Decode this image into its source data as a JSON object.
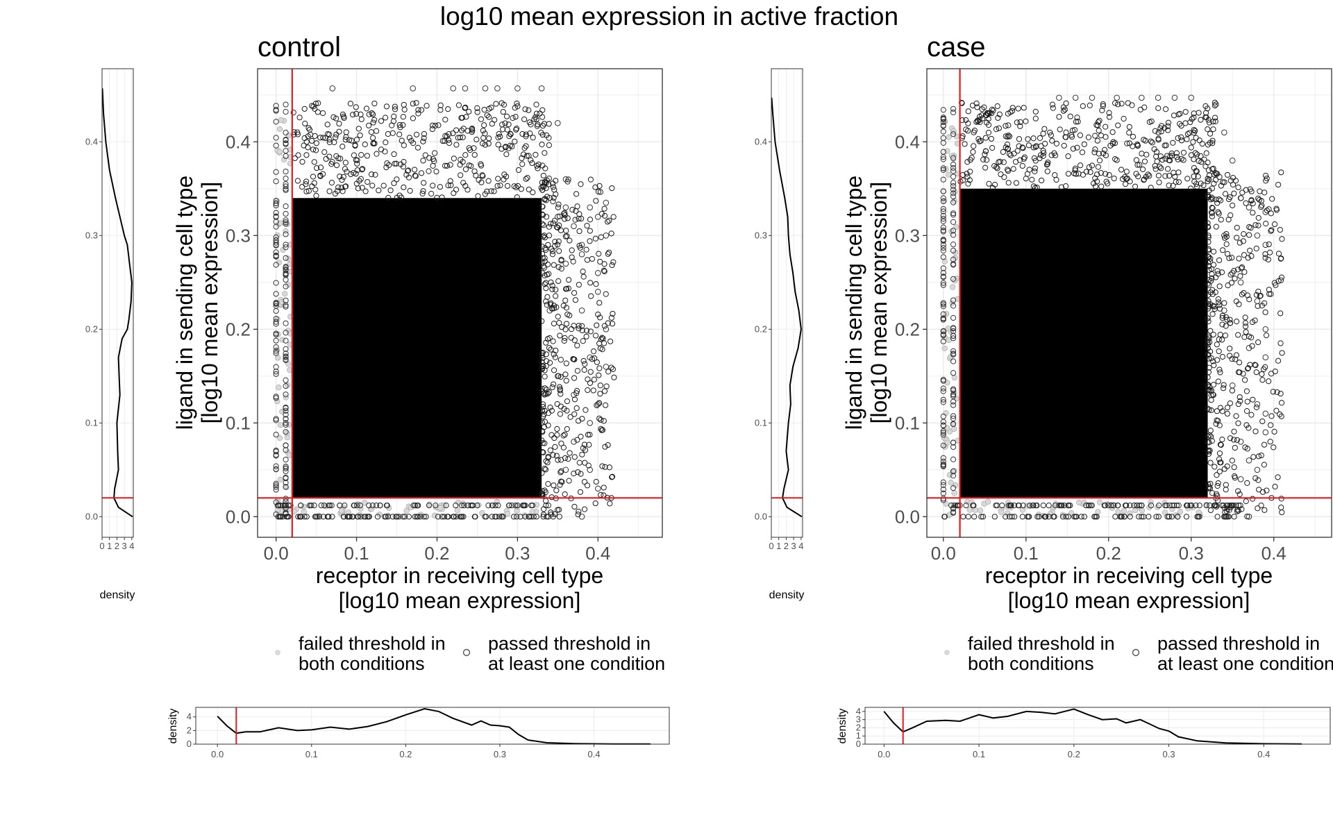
{
  "title": "log10 mean expression in active fraction",
  "colors": {
    "threshold_line": "#e41a1c",
    "point_stroke": "#000000",
    "failed_point": "#d9d9d9",
    "grid": "#ebebeb",
    "panel_border": "#333333",
    "density_line": "#000000"
  },
  "legend": {
    "failed_label_line1": "failed threshold in",
    "failed_label_line2": "both conditions",
    "passed_label_line1": "passed threshold in",
    "passed_label_line2": "at least one condition"
  },
  "chart_data": [
    {
      "type": "scatter",
      "name": "control",
      "title": "control",
      "xlabel_line1": "receptor in receiving cell type",
      "xlabel_line2": "[log10 mean expression]",
      "ylabel_line1": "ligand in sending cell type",
      "ylabel_line2": "[log10 mean expression]",
      "xlim": [
        -0.023,
        0.48
      ],
      "ylim": [
        -0.022,
        0.478
      ],
      "x_ticks": [
        0.0,
        0.1,
        0.2,
        0.3,
        0.4
      ],
      "y_ticks": [
        0.0,
        0.1,
        0.2,
        0.3,
        0.4
      ],
      "x_tick_labels": [
        "0.0",
        "0.1",
        "0.2",
        "0.3",
        "0.4"
      ],
      "y_tick_labels": [
        "0.0",
        "0.1",
        "0.2",
        "0.3",
        "0.4"
      ],
      "threshold": {
        "x": 0.02,
        "y": 0.02
      },
      "dense_region": {
        "x": [
          0.02,
          0.33
        ],
        "y": [
          0.02,
          0.34
        ]
      },
      "outlier_points": [
        [
          0.07,
          0.457
        ],
        [
          0.17,
          0.457
        ],
        [
          0.22,
          0.457
        ],
        [
          0.235,
          0.457
        ],
        [
          0.26,
          0.457
        ],
        [
          0.275,
          0.457
        ],
        [
          0.3,
          0.457
        ],
        [
          0.33,
          0.457
        ],
        [
          0.35,
          0.42
        ],
        [
          0.36,
          0.33
        ],
        [
          0.37,
          0.31
        ],
        [
          0.38,
          0.29
        ],
        [
          0.39,
          0.33
        ],
        [
          0.4,
          0.32
        ],
        [
          0.41,
          0.335
        ],
        [
          0.41,
          0.3
        ],
        [
          0.4,
          0.24
        ],
        [
          0.41,
          0.2
        ],
        [
          0.41,
          0.16
        ],
        [
          0.4,
          0.26
        ],
        [
          0.39,
          0.17
        ],
        [
          0.38,
          0.22
        ],
        [
          0.37,
          0.13
        ],
        [
          0.36,
          0.27
        ],
        [
          0.37,
          0.08
        ],
        [
          0.36,
          0.05
        ],
        [
          0.35,
          0.15
        ],
        [
          0.39,
          0.05
        ],
        [
          0.4,
          0.03
        ],
        [
          0.38,
          0.0
        ],
        [
          0.34,
          0.22
        ],
        [
          0.35,
          0.32
        ],
        [
          0.36,
          0.36
        ],
        [
          0.38,
          0.28
        ],
        [
          0.39,
          0.1
        ],
        [
          0.4,
          0.12
        ]
      ],
      "marginal_y_density": {
        "xlabel": "density",
        "x_ticks": [
          0,
          1,
          2,
          3,
          4
        ],
        "y_ticks": [
          0.0,
          0.1,
          0.2,
          0.3,
          0.4
        ],
        "xlim": [
          0,
          4.2
        ],
        "ylim": [
          -0.022,
          0.478
        ],
        "y": [
          0.0,
          0.01,
          0.02,
          0.03,
          0.05,
          0.07,
          0.1,
          0.13,
          0.15,
          0.17,
          0.19,
          0.2,
          0.21,
          0.23,
          0.25,
          0.27,
          0.29,
          0.3,
          0.32,
          0.34,
          0.37,
          0.4,
          0.43,
          0.457
        ],
        "density": [
          4.1,
          2.2,
          1.6,
          1.7,
          2.2,
          2.1,
          2.0,
          2.4,
          2.3,
          2.2,
          2.7,
          3.4,
          3.6,
          3.9,
          4.0,
          3.7,
          3.4,
          3.0,
          2.4,
          1.8,
          1.0,
          0.5,
          0.2,
          0.05
        ]
      },
      "marginal_x_density": {
        "ylabel": "density",
        "x_ticks": [
          0.0,
          0.1,
          0.2,
          0.3,
          0.4
        ],
        "y_ticks": [
          0,
          2,
          4
        ],
        "xlim": [
          -0.023,
          0.48
        ],
        "ylim": [
          0,
          5.4
        ],
        "x": [
          0.0,
          0.01,
          0.02,
          0.03,
          0.045,
          0.065,
          0.085,
          0.1,
          0.12,
          0.14,
          0.16,
          0.18,
          0.2,
          0.22,
          0.235,
          0.25,
          0.27,
          0.28,
          0.29,
          0.3,
          0.31,
          0.32,
          0.33,
          0.35,
          0.38,
          0.42,
          0.46
        ],
        "density": [
          4.1,
          2.7,
          1.6,
          1.8,
          1.8,
          2.4,
          2.0,
          2.1,
          2.5,
          2.2,
          2.6,
          3.3,
          4.3,
          5.2,
          4.8,
          3.8,
          2.8,
          3.4,
          2.8,
          2.7,
          2.5,
          1.4,
          0.6,
          0.2,
          0.08,
          0.03,
          0.02
        ]
      }
    },
    {
      "type": "scatter",
      "name": "case",
      "title": "case",
      "xlabel_line1": "receptor in receiving cell type",
      "xlabel_line2": "[log10 mean expression]",
      "ylabel_line1": "ligand in sending cell type",
      "ylabel_line2": "[log10 mean expression]",
      "xlim": [
        -0.02,
        0.47
      ],
      "ylim": [
        -0.022,
        0.478
      ],
      "x_ticks": [
        0.0,
        0.1,
        0.2,
        0.3,
        0.4
      ],
      "y_ticks": [
        0.0,
        0.1,
        0.2,
        0.3,
        0.4
      ],
      "x_tick_labels": [
        "0.0",
        "0.1",
        "0.2",
        "0.3",
        "0.4"
      ],
      "y_tick_labels": [
        "0.0",
        "0.1",
        "0.2",
        "0.3",
        "0.4"
      ],
      "threshold": {
        "x": 0.02,
        "y": 0.02
      },
      "dense_region": {
        "x": [
          0.02,
          0.32
        ],
        "y": [
          0.02,
          0.35
        ]
      },
      "outlier_points": [
        [
          0.14,
          0.447
        ],
        [
          0.16,
          0.447
        ],
        [
          0.18,
          0.447
        ],
        [
          0.21,
          0.447
        ],
        [
          0.24,
          0.447
        ],
        [
          0.26,
          0.447
        ],
        [
          0.28,
          0.447
        ],
        [
          0.3,
          0.447
        ],
        [
          0.33,
          0.44
        ],
        [
          0.34,
          0.41
        ],
        [
          0.35,
          0.38
        ],
        [
          0.36,
          0.34
        ],
        [
          0.37,
          0.33
        ],
        [
          0.38,
          0.3
        ],
        [
          0.39,
          0.325
        ],
        [
          0.39,
          0.29
        ],
        [
          0.38,
          0.23
        ],
        [
          0.39,
          0.2
        ],
        [
          0.39,
          0.17
        ],
        [
          0.38,
          0.12
        ],
        [
          0.37,
          0.18
        ],
        [
          0.36,
          0.08
        ],
        [
          0.35,
          0.26
        ],
        [
          0.37,
          0.06
        ],
        [
          0.36,
          0.04
        ],
        [
          0.38,
          0.05
        ],
        [
          0.39,
          0.09
        ],
        [
          0.39,
          0.11
        ],
        [
          0.34,
          0.22
        ],
        [
          0.35,
          0.14
        ],
        [
          0.36,
          0.25
        ],
        [
          0.37,
          0.0
        ],
        [
          0.33,
          0.02
        ],
        [
          0.34,
          0.3
        ]
      ],
      "marginal_y_density": {
        "xlabel": "density",
        "x_ticks": [
          0,
          1,
          2,
          3,
          4
        ],
        "y_ticks": [
          0.0,
          0.1,
          0.2,
          0.3,
          0.4
        ],
        "xlim": [
          0,
          4.2
        ],
        "ylim": [
          -0.022,
          0.478
        ],
        "y": [
          0.0,
          0.01,
          0.02,
          0.03,
          0.05,
          0.07,
          0.1,
          0.12,
          0.14,
          0.16,
          0.18,
          0.2,
          0.22,
          0.24,
          0.26,
          0.28,
          0.3,
          0.32,
          0.34,
          0.37,
          0.4,
          0.43,
          0.447
        ],
        "density": [
          4.1,
          2.1,
          1.5,
          1.7,
          2.3,
          2.0,
          2.3,
          2.6,
          2.5,
          2.9,
          3.6,
          4.0,
          3.7,
          3.2,
          2.9,
          2.5,
          2.3,
          2.2,
          1.8,
          1.1,
          0.5,
          0.2,
          0.05
        ]
      },
      "marginal_x_density": {
        "ylabel": "density",
        "x_ticks": [
          0.0,
          0.1,
          0.2,
          0.3,
          0.4
        ],
        "y_ticks": [
          0,
          1,
          2,
          3,
          4
        ],
        "xlim": [
          -0.02,
          0.47
        ],
        "ylim": [
          0,
          4.5
        ],
        "x": [
          0.0,
          0.01,
          0.02,
          0.03,
          0.045,
          0.065,
          0.08,
          0.1,
          0.115,
          0.13,
          0.15,
          0.165,
          0.18,
          0.2,
          0.215,
          0.23,
          0.245,
          0.255,
          0.27,
          0.29,
          0.3,
          0.31,
          0.33,
          0.36,
          0.4,
          0.44
        ],
        "density": [
          4.0,
          2.6,
          1.5,
          2.0,
          2.8,
          2.9,
          2.8,
          3.6,
          3.2,
          3.4,
          4.0,
          3.9,
          3.7,
          4.3,
          3.6,
          3.0,
          3.1,
          2.6,
          3.0,
          1.9,
          1.6,
          0.9,
          0.4,
          0.15,
          0.05,
          0.02
        ]
      }
    }
  ]
}
